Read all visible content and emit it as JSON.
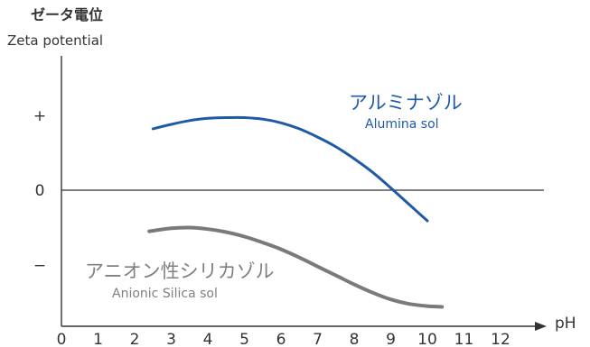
{
  "chart_data": {
    "type": "line",
    "title": "",
    "ylabel_jp": "ゼータ電位",
    "ylabel_en": "Zeta potential",
    "xlabel": "pH",
    "xlim": [
      0,
      12.5
    ],
    "ylim": [
      -1.6,
      1.6
    ],
    "x_ticks": [
      0,
      1,
      2,
      3,
      4,
      5,
      6,
      7,
      8,
      9,
      10,
      11,
      12
    ],
    "y_ticks": [
      {
        "value": 1,
        "label": "+"
      },
      {
        "value": 0,
        "label": "0"
      },
      {
        "value": -1,
        "label": "−"
      }
    ],
    "grid": false,
    "series": [
      {
        "name_jp": "アルミナゾル",
        "name_en": "Alumina sol",
        "color": "#1f5aa6",
        "x": [
          2.5,
          3.0,
          3.5,
          4.0,
          4.5,
          5.0,
          5.5,
          6.0,
          6.5,
          7.0,
          7.5,
          8.0,
          8.5,
          9.0,
          9.5,
          10.0
        ],
        "y": [
          0.82,
          0.88,
          0.93,
          0.96,
          0.97,
          0.97,
          0.95,
          0.9,
          0.82,
          0.71,
          0.58,
          0.42,
          0.24,
          0.03,
          -0.19,
          -0.41
        ]
      },
      {
        "name_jp": "アニオン性シリカゾル",
        "name_en": "Anionic Silica sol",
        "color": "#7a7a7a",
        "x": [
          2.4,
          3.0,
          3.5,
          4.0,
          4.5,
          5.0,
          5.5,
          6.0,
          6.5,
          7.0,
          7.5,
          8.0,
          8.5,
          9.0,
          9.5,
          10.0,
          10.4
        ],
        "y": [
          -0.55,
          -0.51,
          -0.5,
          -0.52,
          -0.56,
          -0.62,
          -0.7,
          -0.79,
          -0.9,
          -1.02,
          -1.14,
          -1.26,
          -1.37,
          -1.46,
          -1.52,
          -1.55,
          -1.56
        ]
      }
    ]
  }
}
